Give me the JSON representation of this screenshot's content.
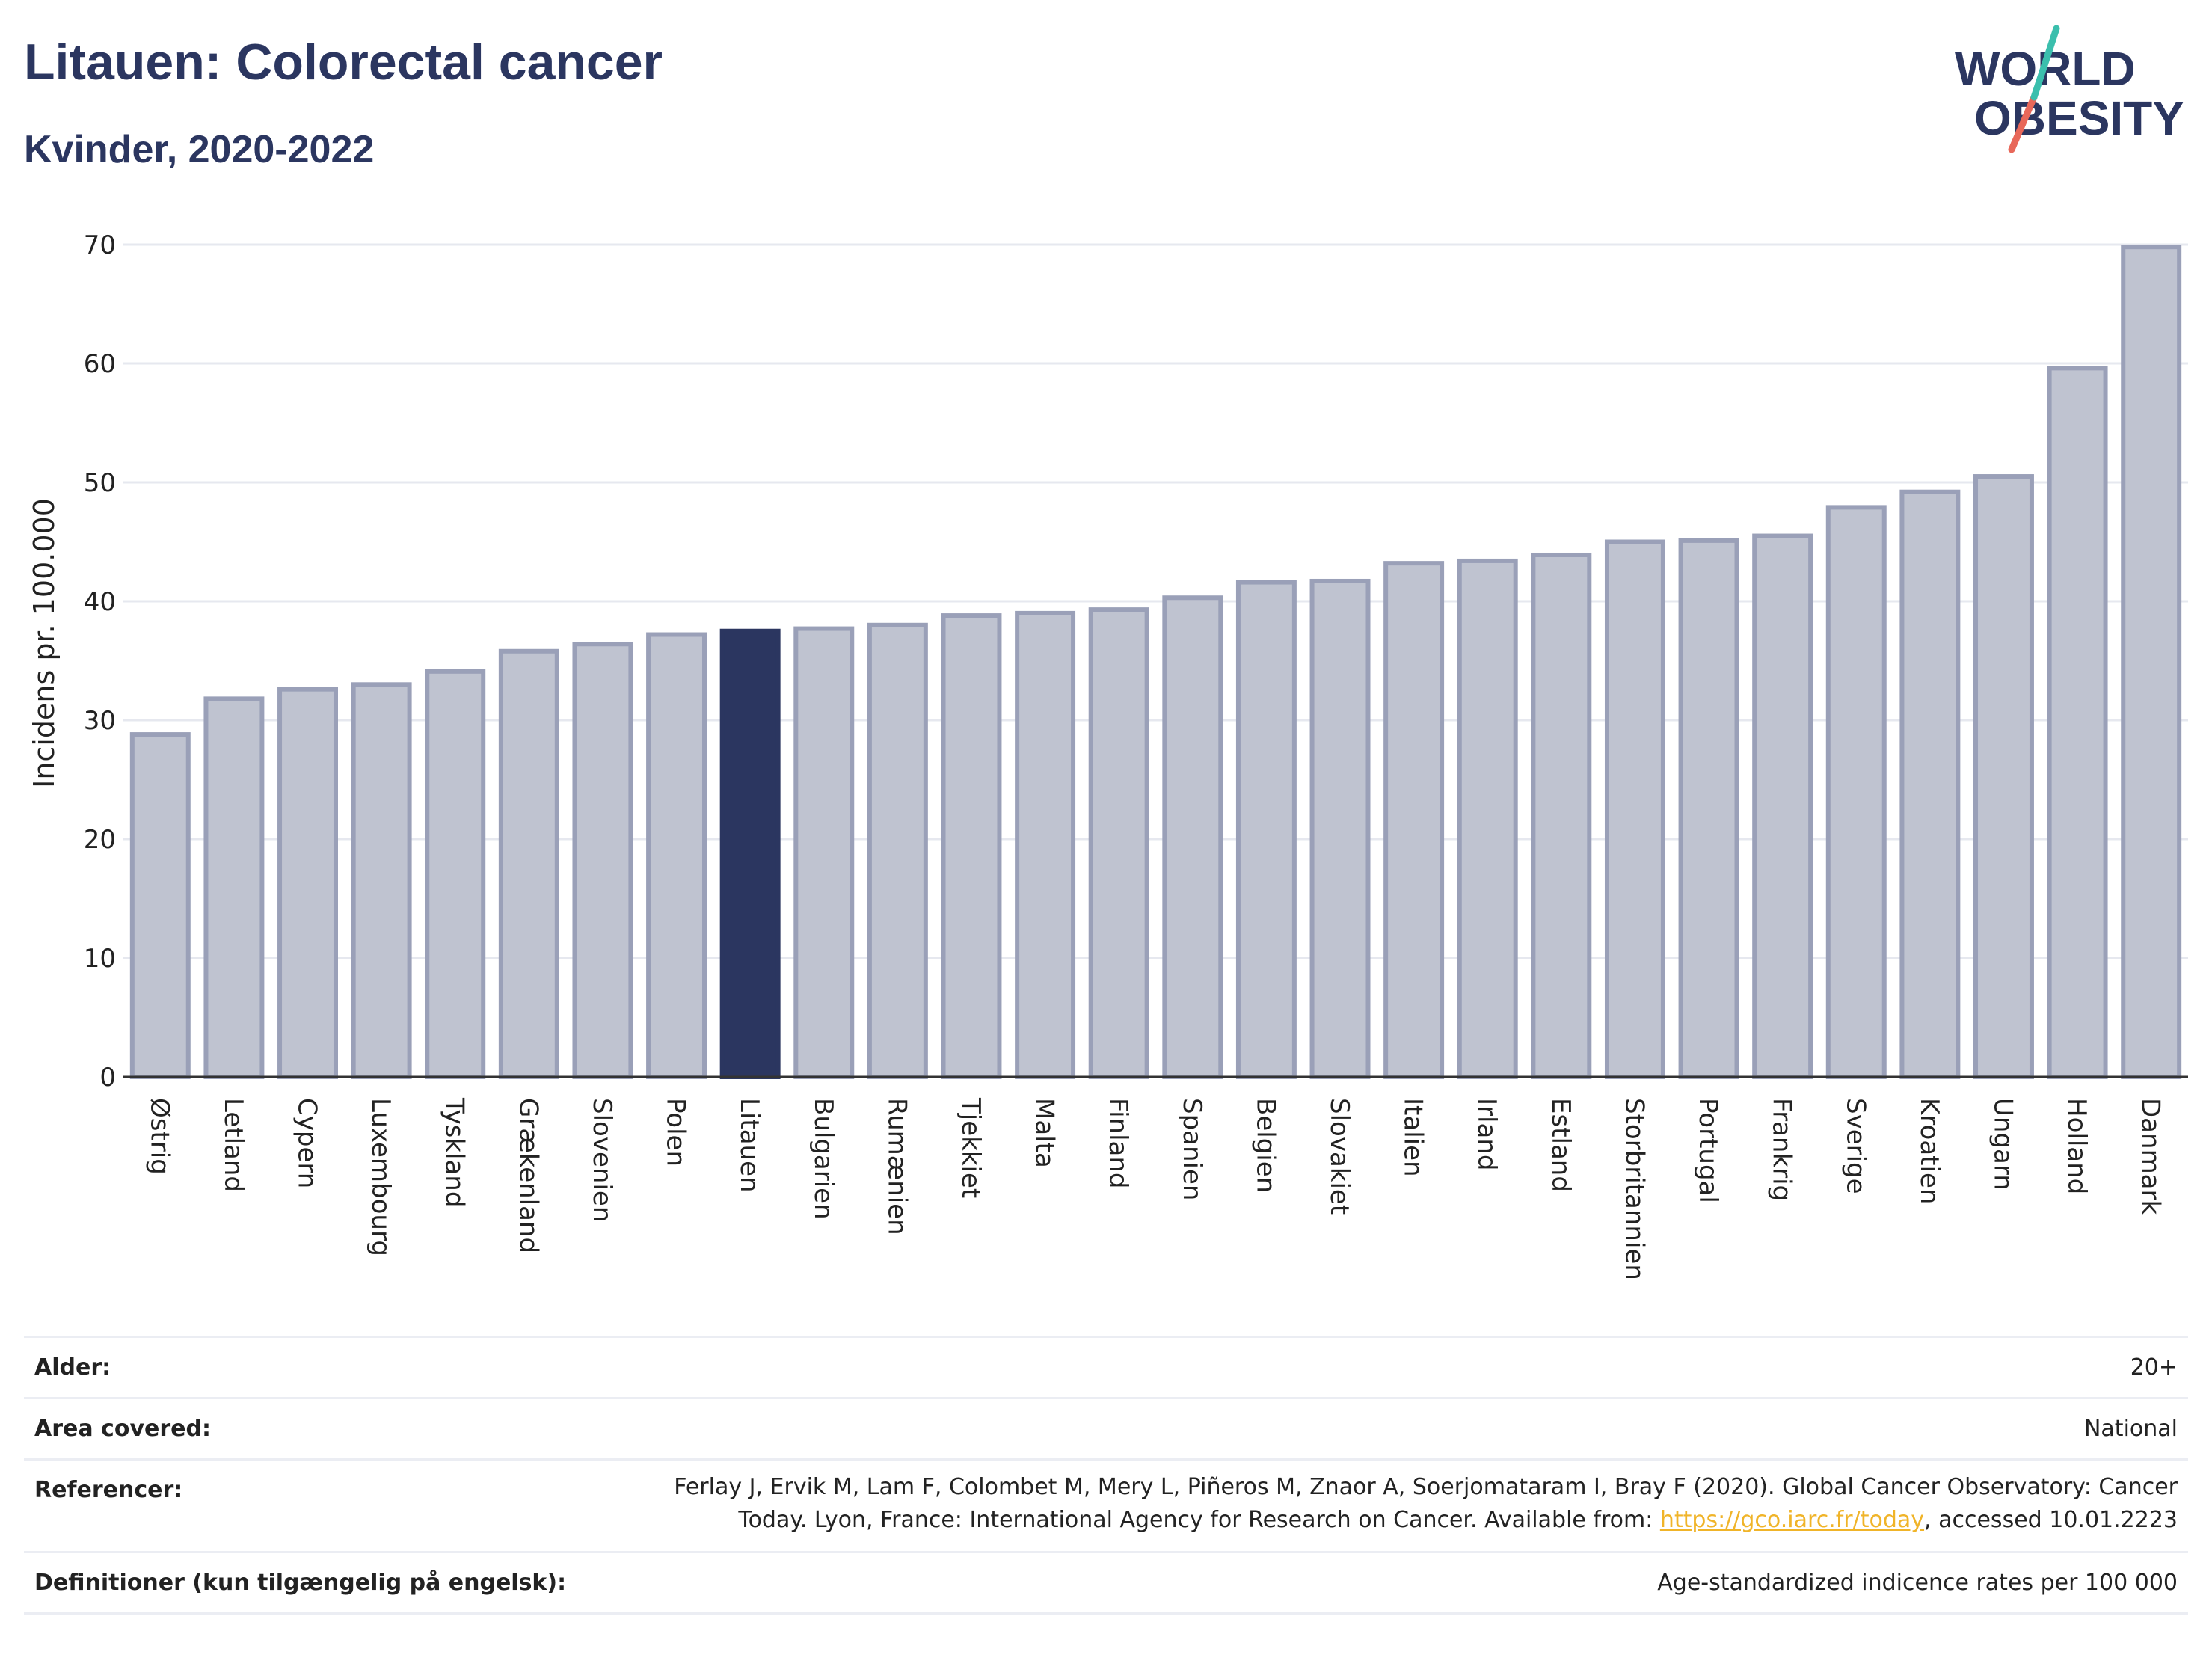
{
  "title": "Litauen: Colorectal cancer",
  "subtitle": "Kvinder, 2020-2022",
  "logo": {
    "line1": "WORLD",
    "line2": "OBESITY",
    "slash_color_top": "#3bbfad",
    "slash_color_bottom": "#e8685a"
  },
  "colors": {
    "bar": "#bfc3d0",
    "bar_stroke": "#9aa0b8",
    "highlight": "#2b3660",
    "grid": "#e6e8ef",
    "title": "#2b3660"
  },
  "chart_data": {
    "type": "bar",
    "ylabel": "Incidens pr. 100.000",
    "xlabel": "",
    "ylim": [
      0,
      70
    ],
    "yticks": [
      0,
      10,
      20,
      30,
      40,
      50,
      60,
      70
    ],
    "grid": true,
    "highlight": "Litauen",
    "categories": [
      "Østrig",
      "Letland",
      "Cypern",
      "Luxembourg",
      "Tyskland",
      "Grækenland",
      "Slovenien",
      "Polen",
      "Litauen",
      "Bulgarien",
      "Rumænien",
      "Tjekkiet",
      "Malta",
      "Finland",
      "Spanien",
      "Belgien",
      "Slovakiet",
      "Italien",
      "Irland",
      "Estland",
      "Storbritannien",
      "Portugal",
      "Frankrig",
      "Sverige",
      "Kroatien",
      "Ungarn",
      "Holland",
      "Danmark"
    ],
    "values": [
      28.8,
      31.8,
      32.6,
      33.0,
      34.1,
      35.8,
      36.4,
      37.2,
      37.5,
      37.7,
      38.0,
      38.8,
      39.0,
      39.3,
      40.3,
      41.6,
      41.7,
      43.2,
      43.4,
      43.9,
      45.0,
      45.1,
      45.5,
      47.9,
      49.2,
      50.5,
      59.6,
      69.8
    ]
  },
  "meta": {
    "age_label": "Alder:",
    "age_value": "20+",
    "area_label": "Area covered:",
    "area_value": "National",
    "ref_label": "Referencer:",
    "ref_line1": "Ferlay J, Ervik M, Lam F, Colombet M, Mery L, Piñeros M, Znaor A, Soerjomataram I, Bray F (2020). Global Cancer Observatory: Cancer",
    "ref_line2_pre": "Today. Lyon, France: International Agency for Research on Cancer. Available from: ",
    "ref_link": "https://gco.iarc.fr/today",
    "ref_line2_post": ", accessed 10.01.2223",
    "def_label": "Definitioner (kun tilgængelig på engelsk):",
    "def_value": "Age-standardized indicence rates per 100 000"
  }
}
